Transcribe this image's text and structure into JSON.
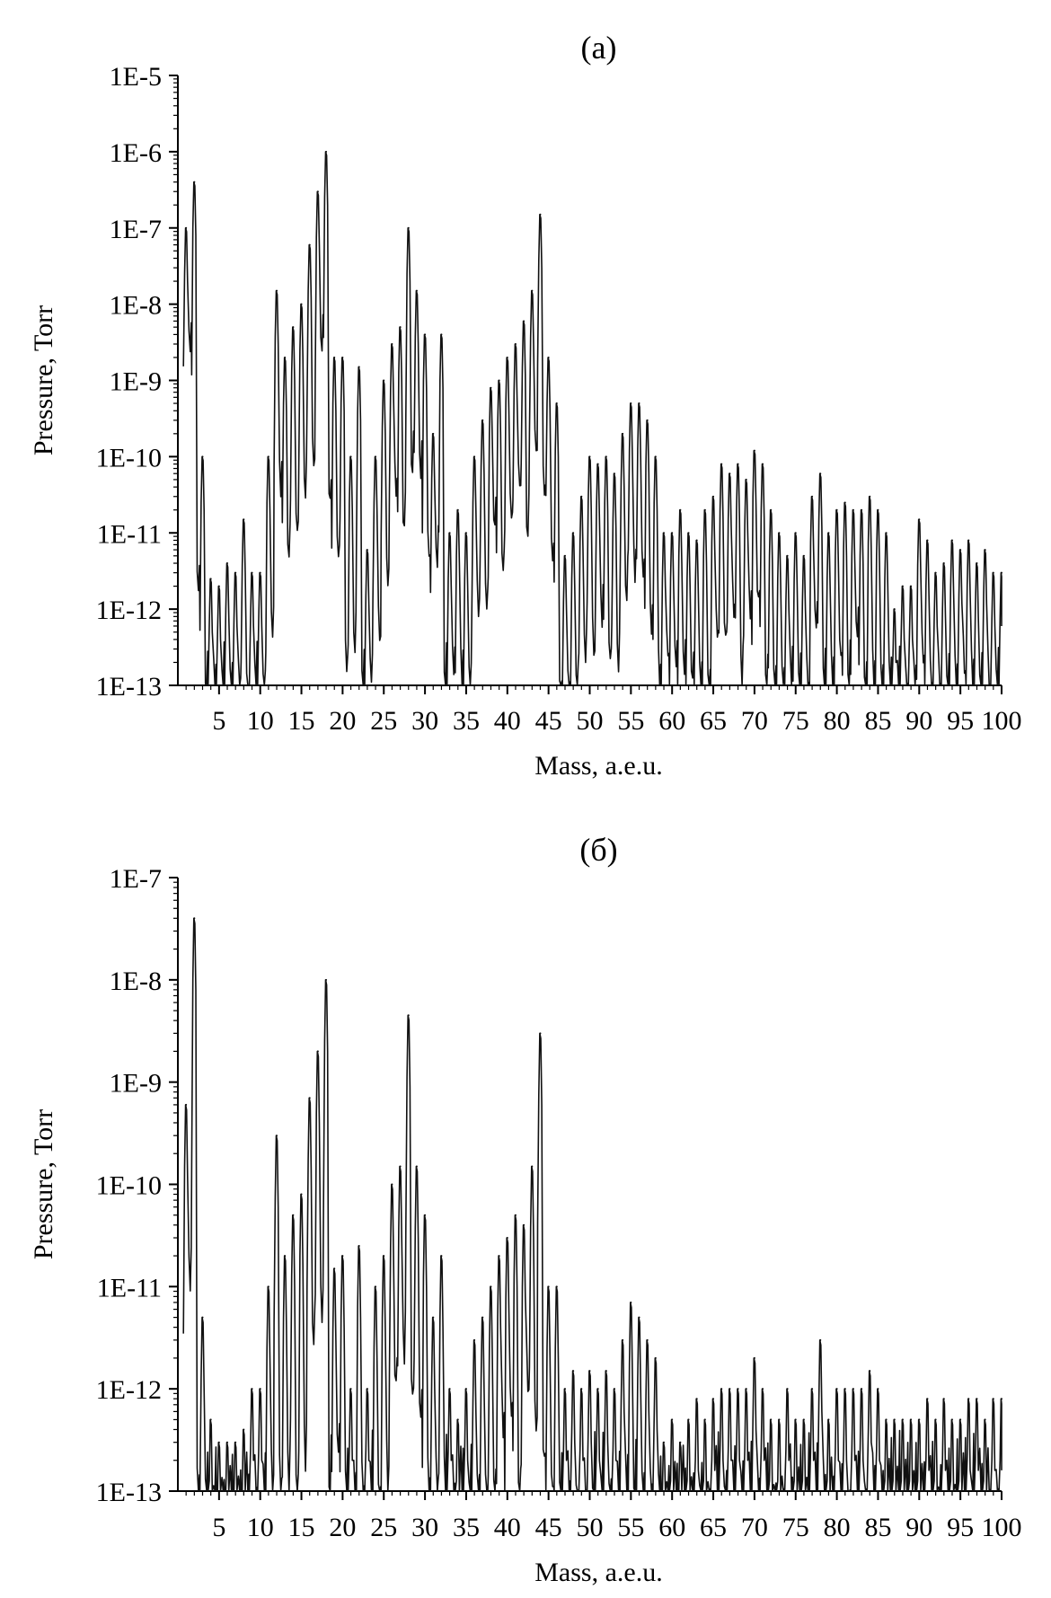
{
  "chart_data": [
    {
      "type": "line",
      "panel_label": "(a)",
      "xlabel": "Mass, a.e.u.",
      "ylabel": "Pressure, Torr",
      "yscale": "log",
      "ylim": [
        1e-13,
        1e-05
      ],
      "xlim": [
        0,
        100
      ],
      "x_ticks": [
        "5",
        "10",
        "15",
        "20",
        "25",
        "30",
        "35",
        "40",
        "45",
        "50",
        "55",
        "60",
        "65",
        "70",
        "75",
        "80",
        "85",
        "90",
        "95",
        "100"
      ],
      "y_ticks": [
        "1E-13",
        "1E-12",
        "1E-11",
        "1E-10",
        "1E-9",
        "1E-8",
        "1E-7",
        "1E-6",
        "1E-5"
      ],
      "baseline": 1e-13,
      "grid": false,
      "legend": "none",
      "peaks": [
        {
          "x": 1,
          "y": 1e-07
        },
        {
          "x": 2,
          "y": 4e-07
        },
        {
          "x": 3,
          "y": 1e-10
        },
        {
          "x": 4,
          "y": 2.5e-12
        },
        {
          "x": 5,
          "y": 2e-12
        },
        {
          "x": 6,
          "y": 4e-12
        },
        {
          "x": 7,
          "y": 3e-12
        },
        {
          "x": 8,
          "y": 1.5e-11
        },
        {
          "x": 9,
          "y": 3e-12
        },
        {
          "x": 10,
          "y": 3e-12
        },
        {
          "x": 11,
          "y": 1e-10
        },
        {
          "x": 12,
          "y": 1.5e-08
        },
        {
          "x": 13,
          "y": 2e-09
        },
        {
          "x": 14,
          "y": 5e-09
        },
        {
          "x": 15,
          "y": 1e-08
        },
        {
          "x": 16,
          "y": 6e-08
        },
        {
          "x": 17,
          "y": 3e-07
        },
        {
          "x": 18,
          "y": 1e-06
        },
        {
          "x": 19,
          "y": 2e-09
        },
        {
          "x": 20,
          "y": 2e-09
        },
        {
          "x": 21,
          "y": 1e-10
        },
        {
          "x": 22,
          "y": 1.5e-09
        },
        {
          "x": 23,
          "y": 6e-12
        },
        {
          "x": 24,
          "y": 1e-10
        },
        {
          "x": 25,
          "y": 1e-09
        },
        {
          "x": 26,
          "y": 3e-09
        },
        {
          "x": 27,
          "y": 5e-09
        },
        {
          "x": 28,
          "y": 1e-07
        },
        {
          "x": 29,
          "y": 1.5e-08
        },
        {
          "x": 30,
          "y": 4e-09
        },
        {
          "x": 31,
          "y": 2e-10
        },
        {
          "x": 32,
          "y": 4e-09
        },
        {
          "x": 33,
          "y": 1e-11
        },
        {
          "x": 34,
          "y": 2e-11
        },
        {
          "x": 35,
          "y": 1e-11
        },
        {
          "x": 36,
          "y": 1e-10
        },
        {
          "x": 37,
          "y": 3e-10
        },
        {
          "x": 38,
          "y": 8e-10
        },
        {
          "x": 39,
          "y": 1e-09
        },
        {
          "x": 40,
          "y": 2e-09
        },
        {
          "x": 41,
          "y": 3e-09
        },
        {
          "x": 42,
          "y": 6e-09
        },
        {
          "x": 43,
          "y": 1.5e-08
        },
        {
          "x": 44,
          "y": 1.5e-07
        },
        {
          "x": 45,
          "y": 2e-09
        },
        {
          "x": 46,
          "y": 5e-10
        },
        {
          "x": 47,
          "y": 5e-12
        },
        {
          "x": 48,
          "y": 1e-11
        },
        {
          "x": 49,
          "y": 3e-11
        },
        {
          "x": 50,
          "y": 1e-10
        },
        {
          "x": 51,
          "y": 8e-11
        },
        {
          "x": 52,
          "y": 1e-10
        },
        {
          "x": 53,
          "y": 6e-11
        },
        {
          "x": 54,
          "y": 2e-10
        },
        {
          "x": 55,
          "y": 5e-10
        },
        {
          "x": 56,
          "y": 5e-10
        },
        {
          "x": 57,
          "y": 3e-10
        },
        {
          "x": 58,
          "y": 1e-10
        },
        {
          "x": 59,
          "y": 1e-11
        },
        {
          "x": 60,
          "y": 1e-11
        },
        {
          "x": 61,
          "y": 2e-11
        },
        {
          "x": 62,
          "y": 1e-11
        },
        {
          "x": 63,
          "y": 8e-12
        },
        {
          "x": 64,
          "y": 2e-11
        },
        {
          "x": 65,
          "y": 3e-11
        },
        {
          "x": 66,
          "y": 8e-11
        },
        {
          "x": 67,
          "y": 6e-11
        },
        {
          "x": 68,
          "y": 8e-11
        },
        {
          "x": 69,
          "y": 5e-11
        },
        {
          "x": 70,
          "y": 1.2e-10
        },
        {
          "x": 71,
          "y": 8e-11
        },
        {
          "x": 72,
          "y": 2e-11
        },
        {
          "x": 73,
          "y": 1e-11
        },
        {
          "x": 74,
          "y": 5e-12
        },
        {
          "x": 75,
          "y": 1e-11
        },
        {
          "x": 76,
          "y": 5e-12
        },
        {
          "x": 77,
          "y": 3e-11
        },
        {
          "x": 78,
          "y": 6e-11
        },
        {
          "x": 79,
          "y": 1e-11
        },
        {
          "x": 80,
          "y": 2e-11
        },
        {
          "x": 81,
          "y": 2.5e-11
        },
        {
          "x": 82,
          "y": 2e-11
        },
        {
          "x": 83,
          "y": 2e-11
        },
        {
          "x": 84,
          "y": 3e-11
        },
        {
          "x": 85,
          "y": 2e-11
        },
        {
          "x": 86,
          "y": 1e-11
        },
        {
          "x": 87,
          "y": 1e-12
        },
        {
          "x": 88,
          "y": 2e-12
        },
        {
          "x": 89,
          "y": 2e-12
        },
        {
          "x": 90,
          "y": 1.5e-11
        },
        {
          "x": 91,
          "y": 8e-12
        },
        {
          "x": 92,
          "y": 3e-12
        },
        {
          "x": 93,
          "y": 4e-12
        },
        {
          "x": 94,
          "y": 8e-12
        },
        {
          "x": 95,
          "y": 6e-12
        },
        {
          "x": 96,
          "y": 8e-12
        },
        {
          "x": 97,
          "y": 4e-12
        },
        {
          "x": 98,
          "y": 6e-12
        },
        {
          "x": 99,
          "y": 3e-12
        },
        {
          "x": 100,
          "y": 3e-12
        }
      ]
    },
    {
      "type": "line",
      "panel_label": "(б)",
      "xlabel": "Mass, a.e.u.",
      "ylabel": "Pressure, Torr",
      "yscale": "log",
      "ylim": [
        1e-13,
        1e-07
      ],
      "xlim": [
        0,
        100
      ],
      "x_ticks": [
        "5",
        "10",
        "15",
        "20",
        "25",
        "30",
        "35",
        "40",
        "45",
        "50",
        "55",
        "60",
        "65",
        "70",
        "75",
        "80",
        "85",
        "90",
        "95",
        "100"
      ],
      "y_ticks": [
        "1E-13",
        "1E-12",
        "1E-11",
        "1E-10",
        "1E-9",
        "1E-8",
        "1E-7"
      ],
      "baseline": 1e-13,
      "grid": false,
      "legend": "none",
      "peaks": [
        {
          "x": 1,
          "y": 6e-10
        },
        {
          "x": 2,
          "y": 4e-08
        },
        {
          "x": 3,
          "y": 5e-12
        },
        {
          "x": 4,
          "y": 5e-13
        },
        {
          "x": 5,
          "y": 3e-13
        },
        {
          "x": 6,
          "y": 3e-13
        },
        {
          "x": 7,
          "y": 3e-13
        },
        {
          "x": 8,
          "y": 4e-13
        },
        {
          "x": 9,
          "y": 1e-12
        },
        {
          "x": 10,
          "y": 1e-12
        },
        {
          "x": 11,
          "y": 1e-11
        },
        {
          "x": 12,
          "y": 3e-10
        },
        {
          "x": 13,
          "y": 2e-11
        },
        {
          "x": 14,
          "y": 5e-11
        },
        {
          "x": 15,
          "y": 8e-11
        },
        {
          "x": 16,
          "y": 7e-10
        },
        {
          "x": 17,
          "y": 2e-09
        },
        {
          "x": 18,
          "y": 1e-08
        },
        {
          "x": 19,
          "y": 1.5e-11
        },
        {
          "x": 20,
          "y": 2e-11
        },
        {
          "x": 21,
          "y": 1e-12
        },
        {
          "x": 22,
          "y": 2.5e-11
        },
        {
          "x": 23,
          "y": 1e-12
        },
        {
          "x": 24,
          "y": 1e-11
        },
        {
          "x": 25,
          "y": 2e-11
        },
        {
          "x": 26,
          "y": 1e-10
        },
        {
          "x": 27,
          "y": 1.5e-10
        },
        {
          "x": 28,
          "y": 4.5e-09
        },
        {
          "x": 29,
          "y": 1.5e-10
        },
        {
          "x": 30,
          "y": 5e-11
        },
        {
          "x": 31,
          "y": 5e-12
        },
        {
          "x": 32,
          "y": 2e-11
        },
        {
          "x": 33,
          "y": 1e-12
        },
        {
          "x": 34,
          "y": 5e-13
        },
        {
          "x": 35,
          "y": 1e-12
        },
        {
          "x": 36,
          "y": 3e-12
        },
        {
          "x": 37,
          "y": 5e-12
        },
        {
          "x": 38,
          "y": 1e-11
        },
        {
          "x": 39,
          "y": 2e-11
        },
        {
          "x": 40,
          "y": 3e-11
        },
        {
          "x": 41,
          "y": 5e-11
        },
        {
          "x": 42,
          "y": 4e-11
        },
        {
          "x": 43,
          "y": 1.5e-10
        },
        {
          "x": 44,
          "y": 3e-09
        },
        {
          "x": 45,
          "y": 1e-11
        },
        {
          "x": 46,
          "y": 1e-11
        },
        {
          "x": 47,
          "y": 1e-12
        },
        {
          "x": 48,
          "y": 1.5e-12
        },
        {
          "x": 49,
          "y": 1e-12
        },
        {
          "x": 50,
          "y": 1.5e-12
        },
        {
          "x": 51,
          "y": 1e-12
        },
        {
          "x": 52,
          "y": 1.5e-12
        },
        {
          "x": 53,
          "y": 1e-12
        },
        {
          "x": 54,
          "y": 3e-12
        },
        {
          "x": 55,
          "y": 7e-12
        },
        {
          "x": 56,
          "y": 5e-12
        },
        {
          "x": 57,
          "y": 3e-12
        },
        {
          "x": 58,
          "y": 2e-12
        },
        {
          "x": 59,
          "y": 3e-13
        },
        {
          "x": 60,
          "y": 5e-13
        },
        {
          "x": 61,
          "y": 3e-13
        },
        {
          "x": 62,
          "y": 5e-13
        },
        {
          "x": 63,
          "y": 8e-13
        },
        {
          "x": 64,
          "y": 5e-13
        },
        {
          "x": 65,
          "y": 8e-13
        },
        {
          "x": 66,
          "y": 1e-12
        },
        {
          "x": 67,
          "y": 1e-12
        },
        {
          "x": 68,
          "y": 1e-12
        },
        {
          "x": 69,
          "y": 1e-12
        },
        {
          "x": 70,
          "y": 2e-12
        },
        {
          "x": 71,
          "y": 1e-12
        },
        {
          "x": 72,
          "y": 5e-13
        },
        {
          "x": 73,
          "y": 5e-13
        },
        {
          "x": 74,
          "y": 1e-12
        },
        {
          "x": 75,
          "y": 5e-13
        },
        {
          "x": 76,
          "y": 5e-13
        },
        {
          "x": 77,
          "y": 1e-12
        },
        {
          "x": 78,
          "y": 3e-12
        },
        {
          "x": 79,
          "y": 5e-13
        },
        {
          "x": 80,
          "y": 1e-12
        },
        {
          "x": 81,
          "y": 1e-12
        },
        {
          "x": 82,
          "y": 1e-12
        },
        {
          "x": 83,
          "y": 1e-12
        },
        {
          "x": 84,
          "y": 1.5e-12
        },
        {
          "x": 85,
          "y": 1e-12
        },
        {
          "x": 86,
          "y": 5e-13
        },
        {
          "x": 87,
          "y": 5e-13
        },
        {
          "x": 88,
          "y": 5e-13
        },
        {
          "x": 89,
          "y": 5e-13
        },
        {
          "x": 90,
          "y": 5e-13
        },
        {
          "x": 91,
          "y": 8e-13
        },
        {
          "x": 92,
          "y": 5e-13
        },
        {
          "x": 93,
          "y": 8e-13
        },
        {
          "x": 94,
          "y": 5e-13
        },
        {
          "x": 95,
          "y": 5e-13
        },
        {
          "x": 96,
          "y": 8e-13
        },
        {
          "x": 97,
          "y": 8e-13
        },
        {
          "x": 98,
          "y": 5e-13
        },
        {
          "x": 99,
          "y": 8e-13
        },
        {
          "x": 100,
          "y": 8e-13
        }
      ]
    }
  ]
}
